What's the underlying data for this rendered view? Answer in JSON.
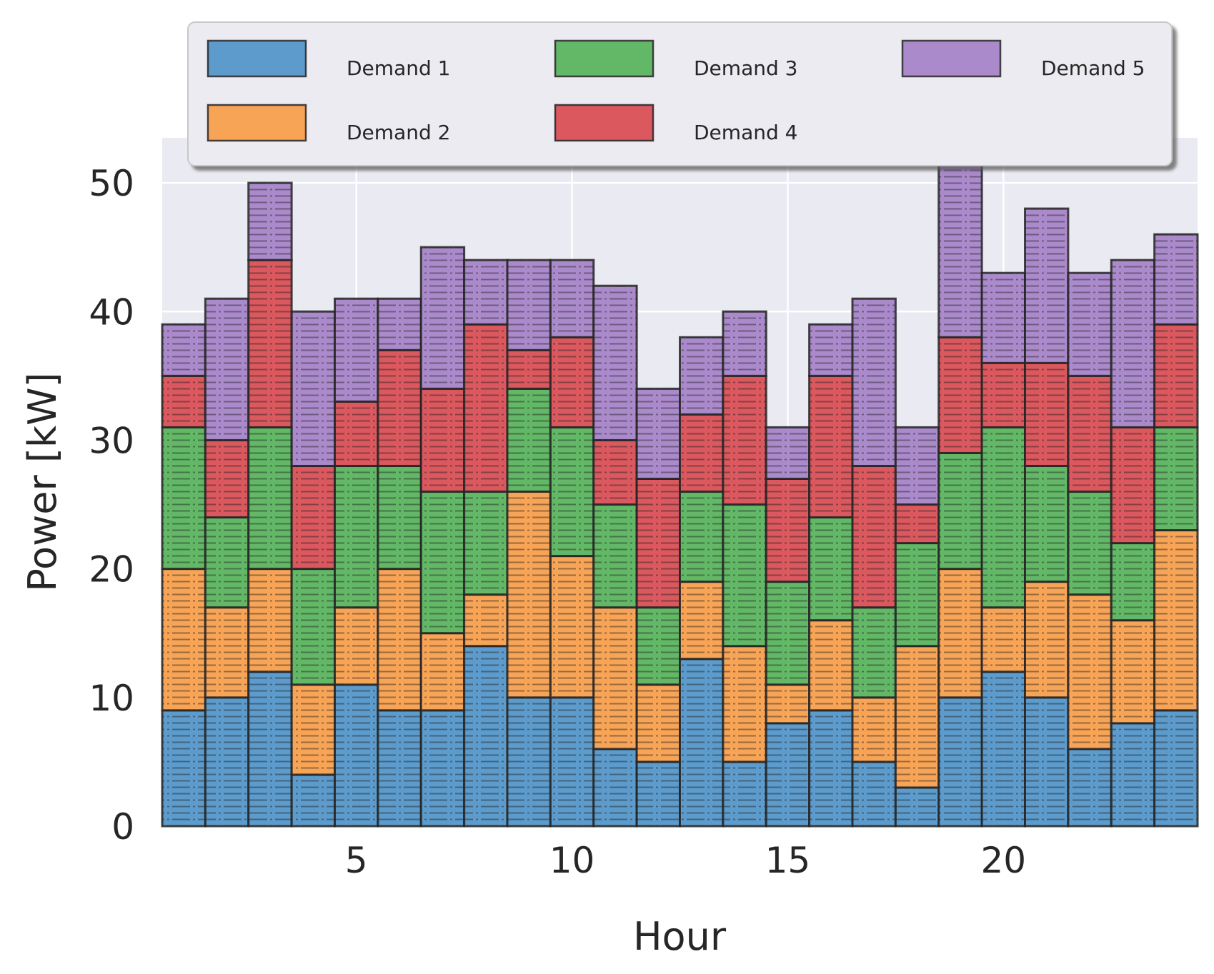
{
  "chart_data": {
    "type": "bar",
    "stacked": true,
    "title": "",
    "xlabel": "Hour",
    "ylabel": "Power [kW]",
    "x": [
      1,
      2,
      3,
      4,
      5,
      6,
      7,
      8,
      9,
      10,
      11,
      12,
      13,
      14,
      15,
      16,
      17,
      18,
      19,
      20,
      21,
      22,
      23,
      24
    ],
    "xticks": [
      5,
      10,
      15,
      20
    ],
    "xtick_labels": [
      "5",
      "10",
      "15",
      "20"
    ],
    "yticks": [
      0,
      10,
      20,
      30,
      40,
      50
    ],
    "ytick_labels": [
      "0",
      "10",
      "20",
      "30",
      "40",
      "50"
    ],
    "xlim": [
      0.5,
      24.5
    ],
    "ylim": [
      0,
      53.5
    ],
    "grid": true,
    "legend_position": "top",
    "series": [
      {
        "name": "Demand 1",
        "color": "#4c92c8",
        "values": [
          9,
          10,
          12,
          4,
          11,
          9,
          9,
          14,
          10,
          10,
          6,
          5,
          13,
          5,
          8,
          9,
          5,
          3,
          10,
          12,
          10,
          6,
          8,
          9
        ]
      },
      {
        "name": "Demand 2",
        "color": "#f99c45",
        "values": [
          11,
          7,
          8,
          7,
          6,
          11,
          6,
          4,
          16,
          11,
          11,
          6,
          6,
          9,
          3,
          7,
          5,
          11,
          10,
          5,
          9,
          12,
          8,
          14
        ]
      },
      {
        "name": "Demand 3",
        "color": "#53b257",
        "values": [
          11,
          7,
          11,
          9,
          11,
          8,
          11,
          8,
          8,
          10,
          8,
          6,
          7,
          11,
          8,
          8,
          7,
          8,
          9,
          14,
          9,
          8,
          6,
          8
        ]
      },
      {
        "name": "Demand 4",
        "color": "#d9484e",
        "values": [
          4,
          6,
          13,
          8,
          5,
          9,
          8,
          13,
          3,
          7,
          5,
          10,
          6,
          10,
          8,
          11,
          11,
          3,
          9,
          5,
          8,
          9,
          9,
          8
        ]
      },
      {
        "name": "Demand 5",
        "color": "#a47fc8",
        "values": [
          4,
          11,
          6,
          12,
          8,
          4,
          11,
          5,
          7,
          6,
          12,
          7,
          6,
          5,
          4,
          4,
          13,
          6,
          14,
          7,
          12,
          8,
          13,
          7
        ]
      }
    ]
  }
}
